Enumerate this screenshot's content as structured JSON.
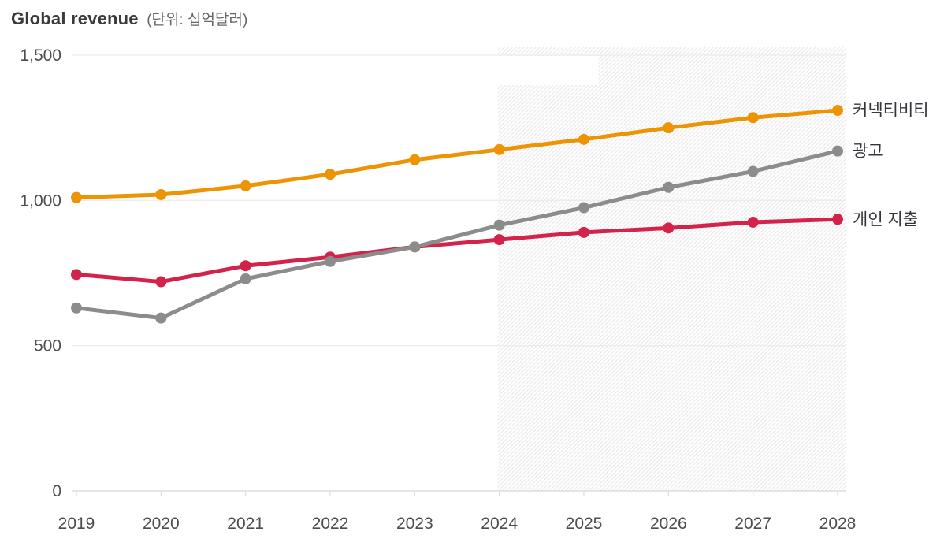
{
  "title": {
    "main": "Global revenue",
    "unit": "(단위: 십억달러)"
  },
  "chart_data": {
    "type": "line",
    "x": [
      "2019",
      "2020",
      "2021",
      "2022",
      "2023",
      "2024",
      "2025",
      "2026",
      "2027",
      "2028"
    ],
    "series": [
      {
        "key": "connectivity",
        "name": "커넥티비티",
        "color": "#ED9405",
        "values": [
          1010,
          1020,
          1050,
          1090,
          1140,
          1175,
          1210,
          1250,
          1285,
          1310
        ]
      },
      {
        "key": "advertising",
        "name": "광고",
        "color": "#8C8C8A",
        "values": [
          630,
          595,
          730,
          790,
          840,
          915,
          975,
          1045,
          1100,
          1170
        ]
      },
      {
        "key": "personal-spending",
        "name": "개인 지출",
        "color": "#D4234A",
        "values": [
          745,
          720,
          775,
          805,
          840,
          865,
          890,
          905,
          925,
          935
        ]
      }
    ],
    "ylim": [
      0,
      1500
    ],
    "yticks": [
      {
        "value": 0,
        "label": "0"
      },
      {
        "value": 500,
        "label": "500"
      },
      {
        "value": 1000,
        "label": "1,000"
      },
      {
        "value": 1500,
        "label": "1,500"
      }
    ],
    "grid": "horizontal",
    "legend_position": "right-of-line-ends",
    "forecast": {
      "start_x": "2024",
      "style": "diagonal-hatch"
    }
  },
  "colors": {
    "grid_line": "#ececec",
    "baseline": "#d8d8d8",
    "axis_tick": "#e0e0e0",
    "hatch_line": "#eaeaea",
    "axis_text": "#4d4d4d",
    "legend_text": "#33373d"
  }
}
